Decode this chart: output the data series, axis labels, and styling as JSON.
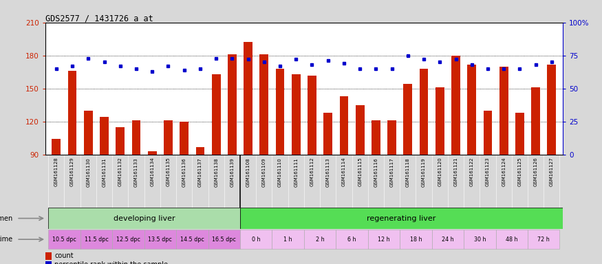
{
  "title": "GDS2577 / 1431726_a_at",
  "samples": [
    "GSM161128",
    "GSM161129",
    "GSM161130",
    "GSM161131",
    "GSM161132",
    "GSM161133",
    "GSM161134",
    "GSM161135",
    "GSM161136",
    "GSM161137",
    "GSM161138",
    "GSM161139",
    "GSM161108",
    "GSM161109",
    "GSM161110",
    "GSM161111",
    "GSM161112",
    "GSM161113",
    "GSM161114",
    "GSM161115",
    "GSM161116",
    "GSM161117",
    "GSM161118",
    "GSM161119",
    "GSM161120",
    "GSM161121",
    "GSM161122",
    "GSM161123",
    "GSM161124",
    "GSM161125",
    "GSM161126",
    "GSM161127"
  ],
  "count": [
    104,
    166,
    130,
    124,
    115,
    121,
    93,
    121,
    120,
    97,
    163,
    181,
    192,
    181,
    168,
    163,
    162,
    128,
    143,
    135,
    121,
    121,
    154,
    168,
    151,
    180,
    172,
    130,
    170,
    128,
    151,
    172
  ],
  "percentile": [
    65,
    67,
    73,
    70,
    67,
    65,
    63,
    67,
    64,
    65,
    73,
    73,
    72,
    70,
    67,
    72,
    68,
    71,
    69,
    65,
    65,
    65,
    75,
    72,
    70,
    72,
    68,
    65,
    65,
    65,
    68,
    70
  ],
  "ylim_left": [
    90,
    210
  ],
  "yticks_left": [
    90,
    120,
    150,
    180,
    210
  ],
  "ylim_right": [
    0,
    100
  ],
  "yticks_right": [
    0,
    25,
    50,
    75,
    100
  ],
  "bar_color": "#cc2200",
  "dot_color": "#0000cc",
  "grid_lines": [
    120,
    150,
    180
  ],
  "specimen_labels": [
    "developing liver",
    "regenerating liver"
  ],
  "specimen_colors": [
    "#aaddaa",
    "#55dd55"
  ],
  "time_color_dpc": "#dd88dd",
  "time_color_h": "#f0c0f0",
  "background_color": "#d8d8d8",
  "plot_bg": "#ffffff",
  "xtick_bg": "#c8c8c8",
  "legend_count_color": "#cc2200",
  "legend_dot_color": "#0000cc"
}
